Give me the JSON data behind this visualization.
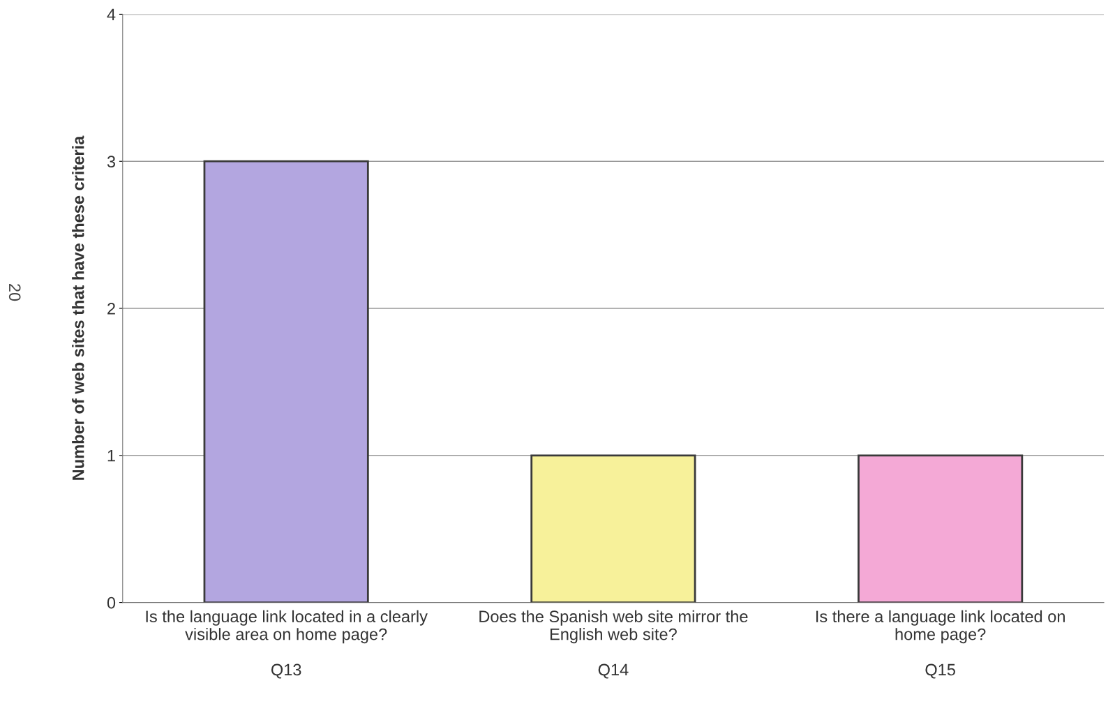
{
  "chart_data": {
    "type": "bar",
    "ylabel": "Number of web sites that have these criteria",
    "categories": [
      "Is the language link located in a clearly\nvisible area on home page?\n\nQ13",
      "Does the Spanish web site mirror the\nEnglish web site?\n\nQ14",
      "Is there a language link located on\nhome page?\n\nQ15"
    ],
    "values": [
      3,
      1,
      1
    ],
    "colors": [
      "#b3a6e0",
      "#f7f19a",
      "#f4a9d6"
    ],
    "ylim": [
      0,
      4
    ],
    "yticks": [
      0,
      1,
      2,
      3,
      4
    ],
    "grid": "y",
    "annotations": [
      "20"
    ]
  }
}
